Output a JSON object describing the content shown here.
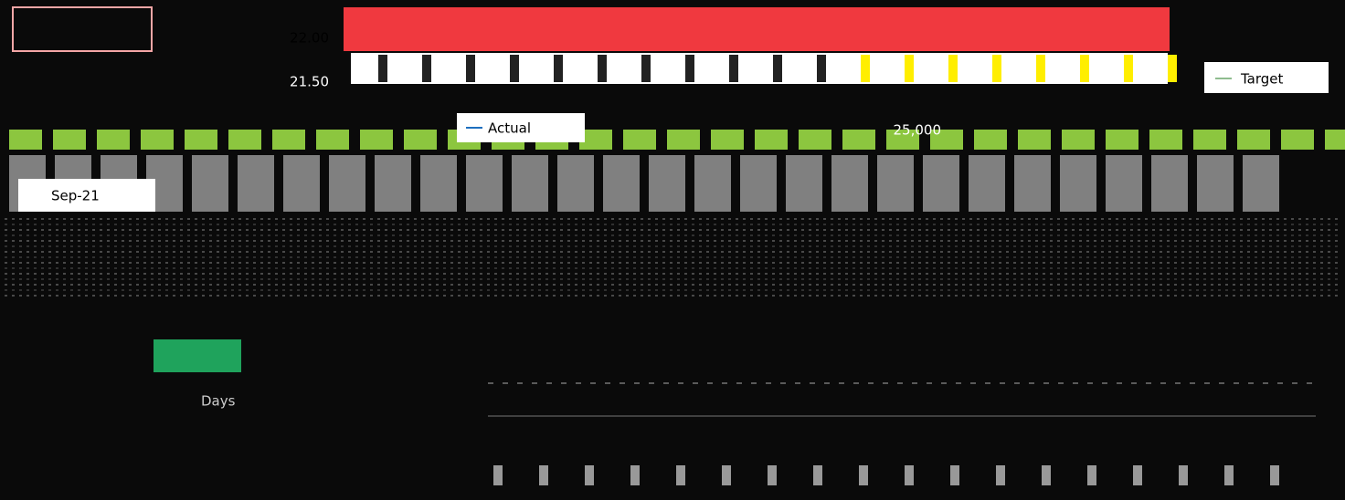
{
  "screen": {
    "axis_labels": [
      "22.00",
      "21.50"
    ],
    "legend": [
      "Target",
      "Actual"
    ],
    "date_label": "Sep-21",
    "axis_title": "Days",
    "value_label": "25,000"
  }
}
